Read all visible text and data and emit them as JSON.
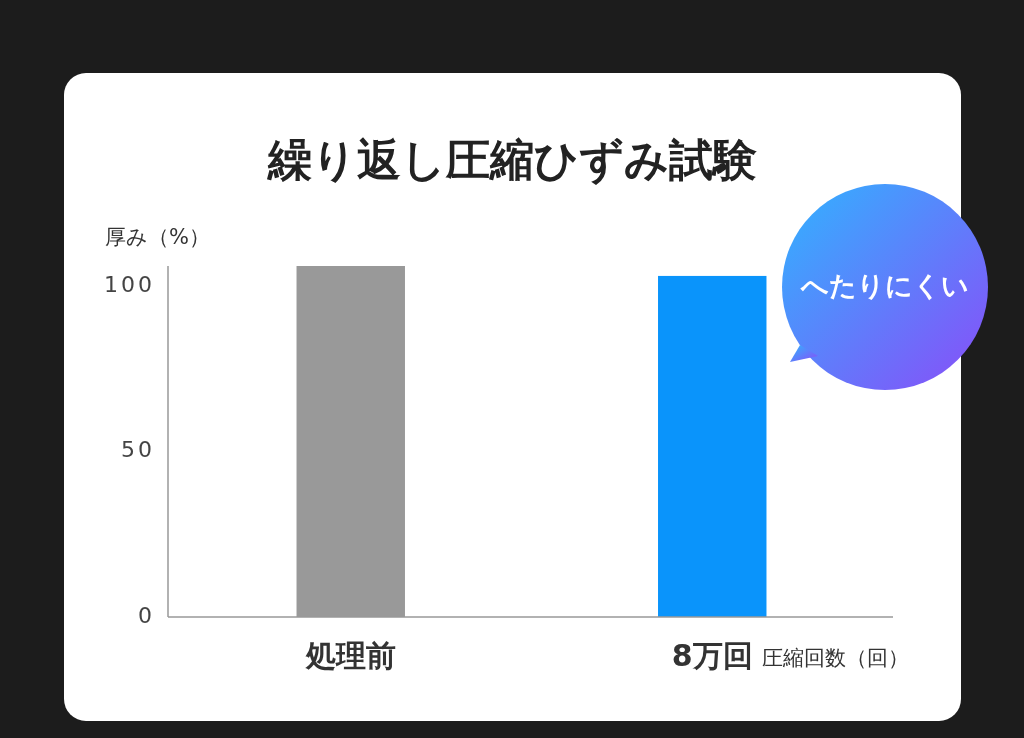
{
  "chart_data": {
    "type": "bar",
    "title": "繰り返し圧縮ひずみ試験",
    "ylabel": "厚み（%）",
    "xlabel": "圧縮回数（回）",
    "categories": [
      "処理前",
      "8万回"
    ],
    "values": [
      106,
      103
    ],
    "colors": [
      "#999999",
      "#0a94fb"
    ],
    "ylim": [
      0,
      106
    ],
    "yticks": [
      0,
      50,
      100
    ],
    "grid": false,
    "annotations": [
      "へたりにくい"
    ]
  }
}
